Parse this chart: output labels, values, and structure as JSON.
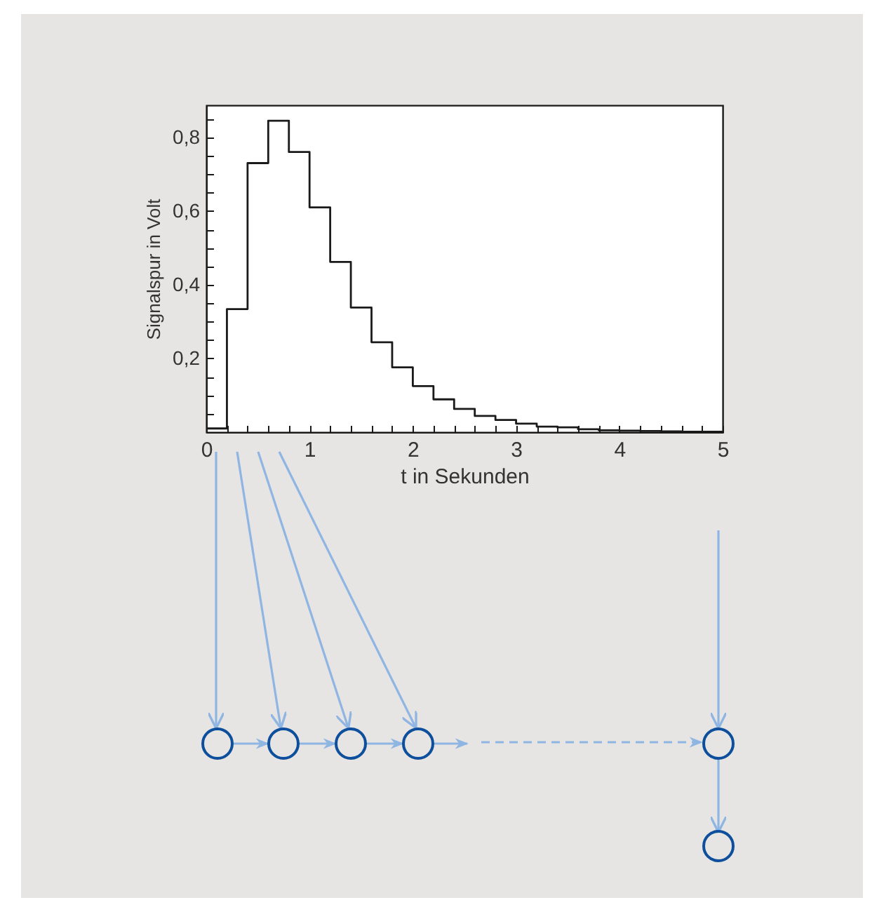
{
  "chart_data": {
    "type": "histogram",
    "xlabel": "t in Sekunden",
    "ylabel": "Signalspur in Volt",
    "bins": [
      0,
      0.2,
      0.4,
      0.6,
      0.8,
      1,
      1.2,
      1.4,
      1.6,
      1.8,
      2,
      2.2,
      2.4,
      2.6,
      2.8,
      3,
      3.2,
      3.4,
      3.6,
      3.8,
      4,
      4.2,
      4.4,
      4.6,
      4.8,
      5
    ],
    "values": [
      0.01,
      0.334,
      0.73,
      0.845,
      0.76,
      0.61,
      0.462,
      0.338,
      0.244,
      0.176,
      0.125,
      0.089,
      0.063,
      0.044,
      0.033,
      0.023,
      0.015,
      0.013,
      0.008,
      0.005,
      0.004,
      0.003,
      0.002,
      0.001,
      0.001
    ],
    "color": "#1a1a1a",
    "xlim": [
      0,
      5
    ],
    "ylim": [
      0,
      0.887
    ],
    "xticks": [
      0,
      {
        "value": 0.2,
        "label": null
      },
      {
        "value": 0.4,
        "label": null
      },
      {
        "value": 0.6,
        "label": null
      },
      {
        "value": 0.8,
        "label": null
      },
      1,
      {
        "value": 1.2,
        "label": null
      },
      {
        "value": 1.4,
        "label": null
      },
      {
        "value": 1.6,
        "label": null
      },
      {
        "value": 1.8,
        "label": null
      },
      2,
      {
        "value": 2.2,
        "label": null
      },
      {
        "value": 2.4,
        "label": null
      },
      {
        "value": 2.6,
        "label": null
      },
      {
        "value": 2.8,
        "label": null
      },
      3,
      {
        "value": 3.2,
        "label": null
      },
      {
        "value": 3.4,
        "label": null
      },
      {
        "value": 3.6,
        "label": null
      },
      {
        "value": 3.8,
        "label": null
      },
      4,
      {
        "value": 4.2,
        "label": null
      },
      {
        "value": 4.4,
        "label": null
      },
      {
        "value": 4.6,
        "label": null
      },
      {
        "value": 4.8,
        "label": null
      },
      5
    ],
    "yticks": [
      {
        "value": 0.05,
        "label": null
      },
      {
        "value": 0.1,
        "label": null
      },
      {
        "value": 0.15,
        "label": null
      },
      {
        "value": 0.2,
        "label": "0,2"
      },
      {
        "value": 0.25,
        "label": null
      },
      {
        "value": 0.3,
        "label": null
      },
      {
        "value": 0.35,
        "label": null
      },
      {
        "value": 0.4,
        "label": "0,4"
      },
      {
        "value": 0.45,
        "label": null
      },
      {
        "value": 0.5,
        "label": null
      },
      {
        "value": 0.55,
        "label": null
      },
      {
        "value": 0.6,
        "label": "0,6"
      },
      {
        "value": 0.65,
        "label": null
      },
      {
        "value": 0.7,
        "label": null
      },
      {
        "value": 0.75,
        "label": null
      },
      {
        "value": 0.8,
        "label": "0,8"
      },
      {
        "value": 0.85,
        "label": null
      }
    ],
    "grid": false
  }
}
